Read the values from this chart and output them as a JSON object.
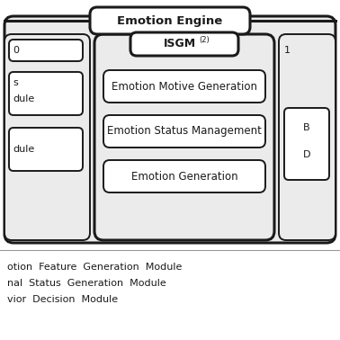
{
  "bg_color": "#ebebeb",
  "white": "#ffffff",
  "border_color": "#1a1a1a",
  "text_color": "#1a1a1a",
  "emotion_engine_label": "Emotion Engine",
  "isgm_label": "ISGM",
  "isgm_superscript": "(2)",
  "inner_boxes": [
    "Emotion Motive Generation",
    "Emotion Status Management",
    "Emotion Generation"
  ],
  "legend_lines": [
    "otion  Feature  Generation  Module",
    "nal  Status  Generation  Module",
    "vior  Decision  Module"
  ],
  "fig_width": 3.78,
  "fig_height": 3.78,
  "dpi": 100
}
